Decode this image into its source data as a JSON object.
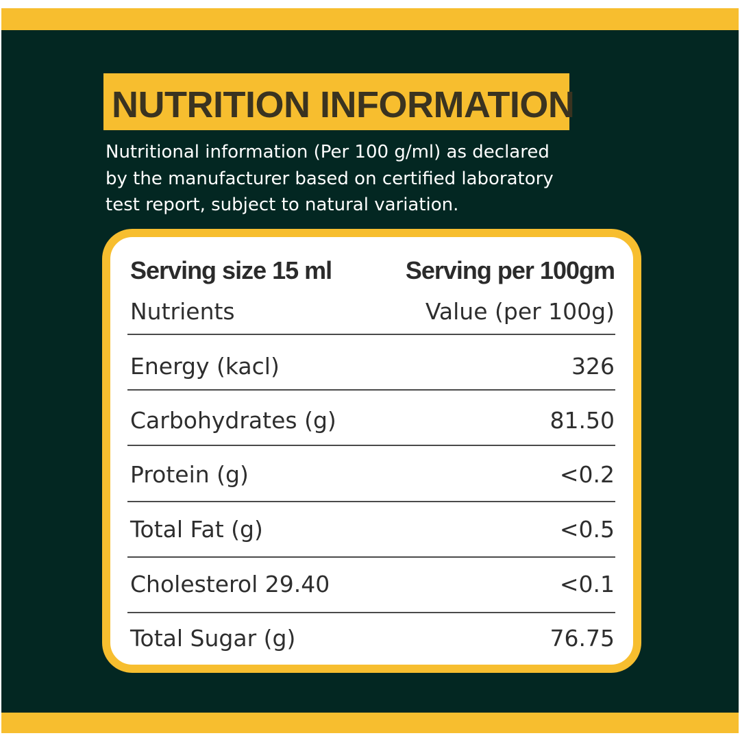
{
  "colors": {
    "background": "#032722",
    "accent": "#f7be2f",
    "card": "#ffffff",
    "title_text": "#3a3320",
    "body_text": "#2e2e2e"
  },
  "header": {
    "title": "NUTRITION INFORMATION",
    "description_lines": [
      "Nutritional information (Per 100 g/ml) as declared",
      "by the manufacturer based on certified laboratory",
      "test report, subject to natural variation."
    ]
  },
  "table": {
    "serving_size": "Serving size 15 ml",
    "serving_per": "Serving per 100gm",
    "col_nutrients": "Nutrients",
    "col_value": "Value (per 100g)",
    "rows": [
      {
        "label": "Energy (kacl)",
        "value": "326"
      },
      {
        "label": "Carbohydrates (g)",
        "value": "81.50"
      },
      {
        "label": "Protein (g)",
        "value": "<0.2"
      },
      {
        "label": "Total Fat (g)",
        "value": "<0.5"
      },
      {
        "label": "Cholesterol 29.40",
        "value": "<0.1"
      },
      {
        "label": "Total Sugar (g)",
        "value": "76.75"
      }
    ]
  }
}
